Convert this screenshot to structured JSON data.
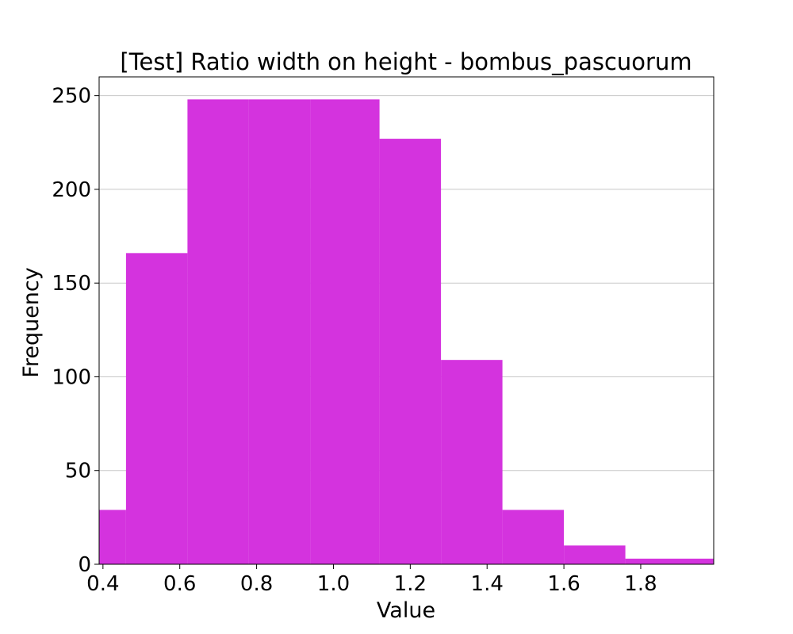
{
  "chart_data": {
    "type": "bar",
    "title": "[Test] Ratio width on height - bombus_pascuorum",
    "xlabel": "Value",
    "ylabel": "Frequency",
    "xlim": [
      0.39,
      1.99
    ],
    "ylim": [
      0,
      260
    ],
    "x_ticks": [
      0.4,
      0.6,
      0.8,
      1.0,
      1.2,
      1.4,
      1.6,
      1.8
    ],
    "x_tick_labels": [
      "0.4",
      "0.6",
      "0.8",
      "1.0",
      "1.2",
      "1.4",
      "1.6",
      "1.8"
    ],
    "y_ticks": [
      0,
      50,
      100,
      150,
      200,
      250
    ],
    "y_tick_labels": [
      "0",
      "50",
      "100",
      "150",
      "200",
      "250"
    ],
    "grid": "horizontal",
    "legend": "none",
    "bar_color": "#d433de",
    "bins": [
      {
        "x0": 0.39,
        "x1": 0.46,
        "value": 29
      },
      {
        "x0": 0.46,
        "x1": 0.62,
        "value": 166
      },
      {
        "x0": 0.62,
        "x1": 0.78,
        "value": 248
      },
      {
        "x0": 0.78,
        "x1": 0.94,
        "value": 248
      },
      {
        "x0": 0.94,
        "x1": 1.12,
        "value": 248
      },
      {
        "x0": 1.12,
        "x1": 1.28,
        "value": 227
      },
      {
        "x0": 1.28,
        "x1": 1.44,
        "value": 109
      },
      {
        "x0": 1.44,
        "x1": 1.6,
        "value": 29
      },
      {
        "x0": 1.6,
        "x1": 1.76,
        "value": 10
      },
      {
        "x0": 1.76,
        "x1": 1.99,
        "value": 3
      }
    ]
  }
}
